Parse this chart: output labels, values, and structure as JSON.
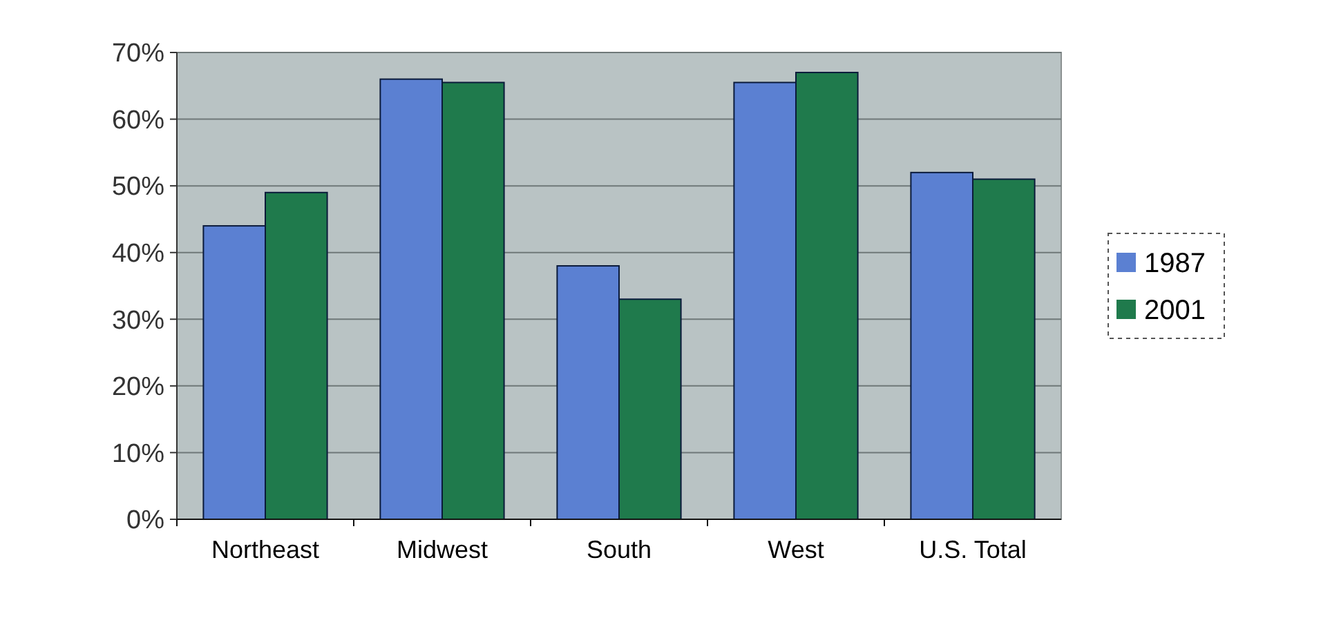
{
  "chart_data": {
    "type": "bar",
    "categories": [
      "Northeast",
      "Midwest",
      "South",
      "West",
      "U.S. Total"
    ],
    "series": [
      {
        "name": "1987",
        "color": "#5b80d2",
        "values": [
          44,
          66,
          38,
          65.5,
          52
        ]
      },
      {
        "name": "2001",
        "color": "#1f7a4c",
        "values": [
          49,
          65.5,
          33,
          67,
          51
        ]
      }
    ],
    "ylim": [
      0,
      70
    ],
    "yticks": [
      {
        "value": 0,
        "label": "0%"
      },
      {
        "value": 10,
        "label": "10%"
      },
      {
        "value": 20,
        "label": "20%"
      },
      {
        "value": 30,
        "label": "30%"
      },
      {
        "value": 40,
        "label": "40%"
      },
      {
        "value": 50,
        "label": "50%"
      },
      {
        "value": 60,
        "label": "60%"
      },
      {
        "value": 70,
        "label": "70%"
      }
    ],
    "grid": "y",
    "legend": "right"
  }
}
